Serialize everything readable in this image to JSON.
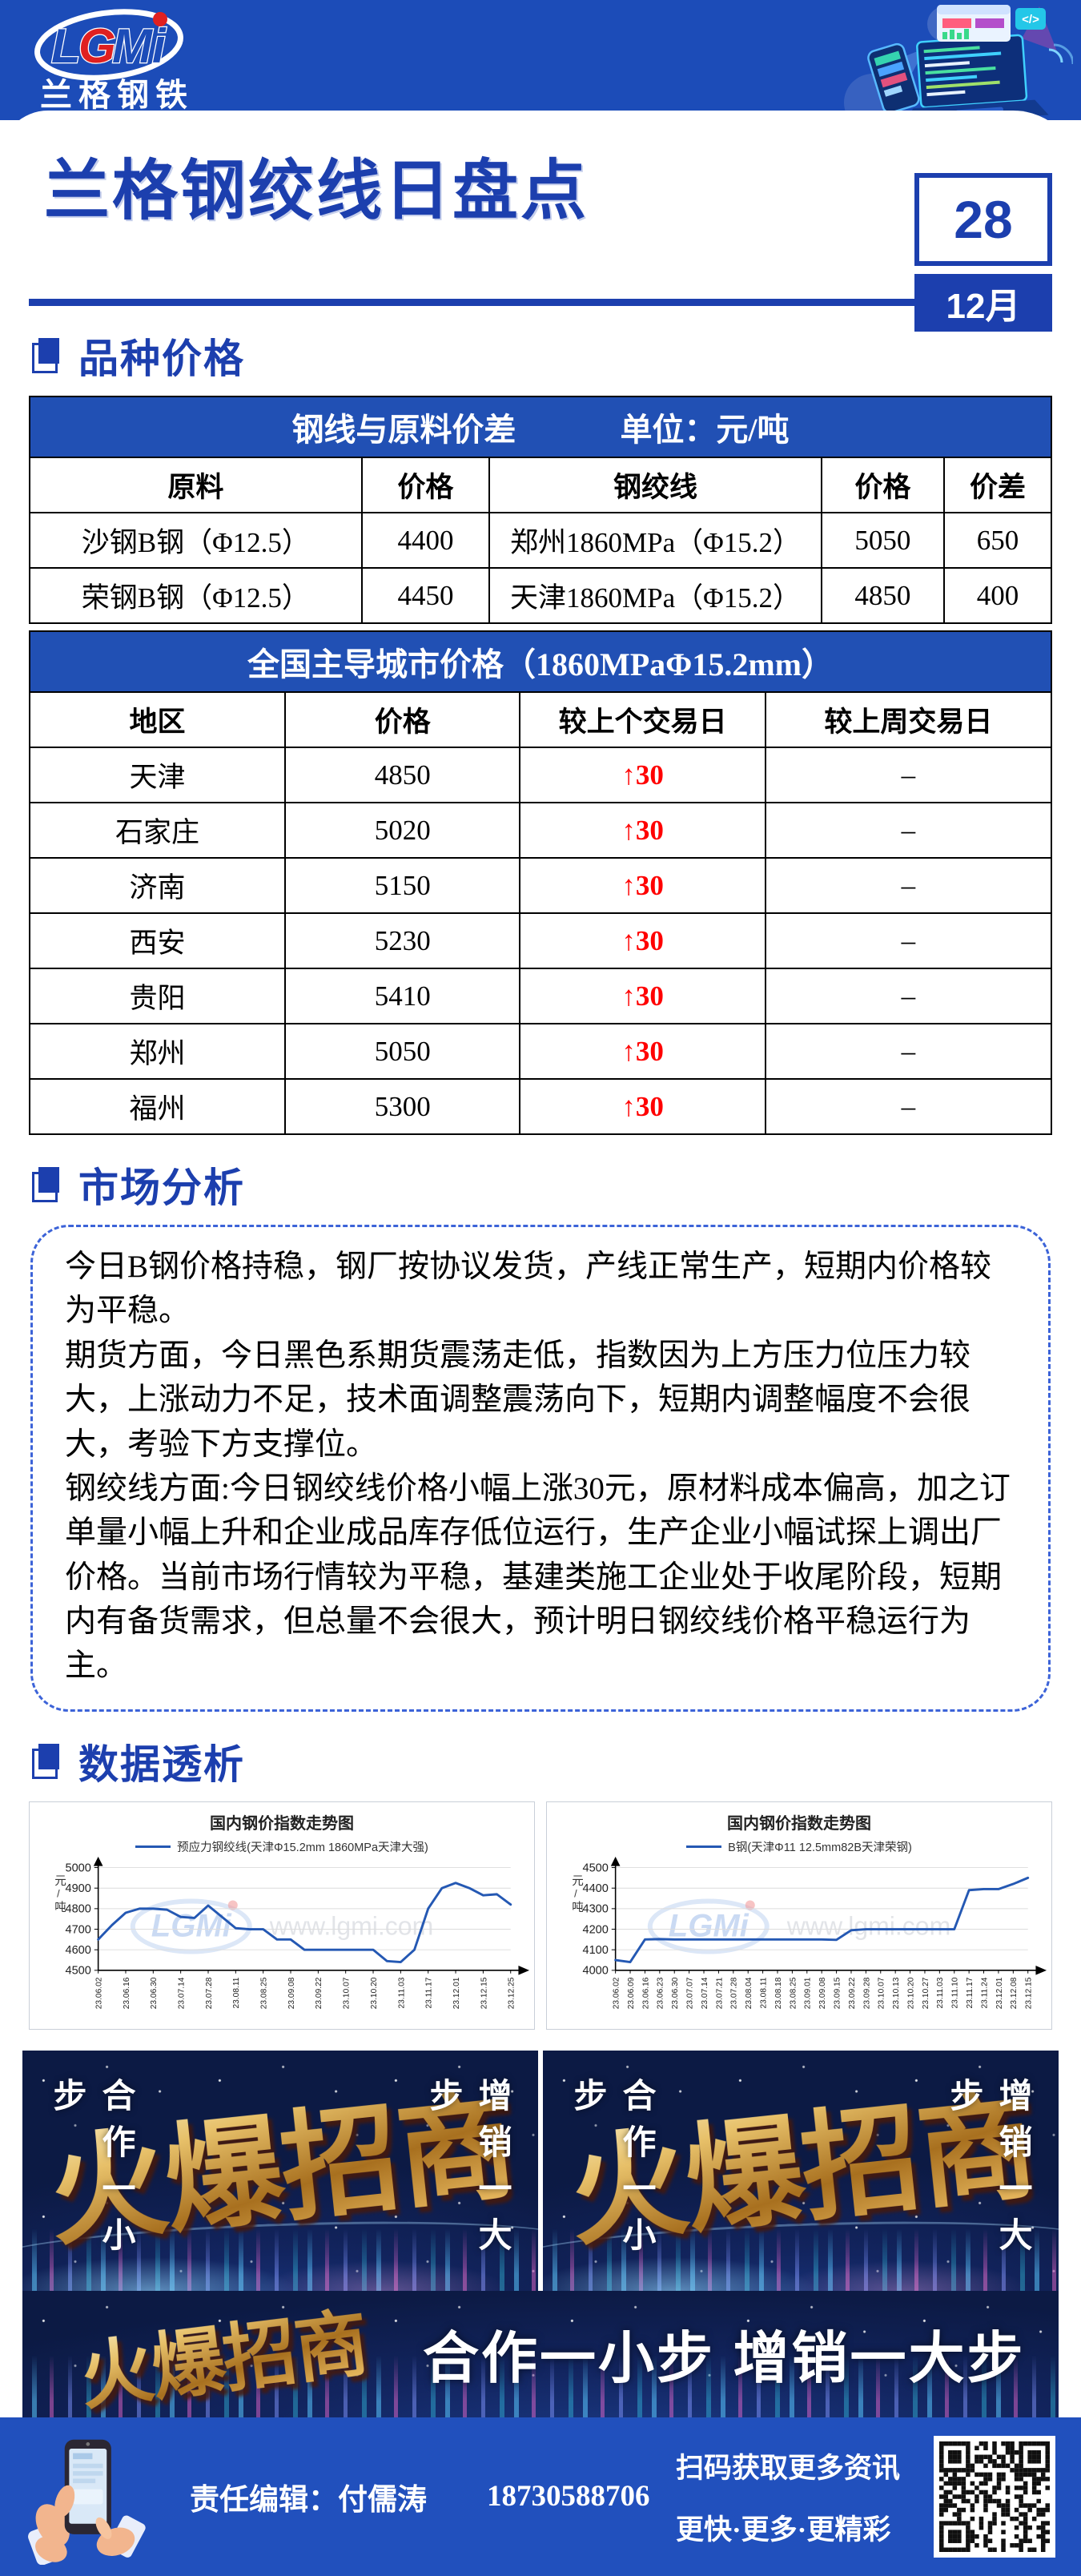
{
  "colors": {
    "primary_blue": "#1c4cb8",
    "title_blue": "#1c3fae",
    "table_header_blue": "#2150b4",
    "up_red": "#ff0000",
    "banner_navy": "#0c1a44",
    "gold": "#d9a84e",
    "chart_line_blue": "#2458b3"
  },
  "brand": {
    "logo_l": "L",
    "logo_g": "G",
    "logo_mi": "Mi",
    "name": "兰格钢铁"
  },
  "header": {
    "title": "兰格钢绞线日盘点",
    "day": "28",
    "month": "12月"
  },
  "section_titles": {
    "prices": "品种价格",
    "analysis": "市场分析",
    "data": "数据透析"
  },
  "spread_table": {
    "title": "钢线与原料价差",
    "unit": "单位：元/吨",
    "columns": [
      "原料",
      "价格",
      "钢绞线",
      "价格",
      "价差"
    ],
    "rows": [
      [
        "沙钢B钢（Φ12.5）",
        "4400",
        "郑州1860MPa（Φ15.2）",
        "5050",
        "650"
      ],
      [
        "荣钢B钢（Φ12.5）",
        "4450",
        "天津1860MPa（Φ15.2）",
        "4850",
        "400"
      ]
    ]
  },
  "city_table": {
    "title": "全国主导城市价格（1860MPaΦ15.2mm）",
    "columns": [
      "地区",
      "价格",
      "较上个交易日",
      "较上周交易日"
    ],
    "rows": [
      [
        "天津",
        "4850",
        "↑30",
        "–"
      ],
      [
        "石家庄",
        "5020",
        "↑30",
        "–"
      ],
      [
        "济南",
        "5150",
        "↑30",
        "–"
      ],
      [
        "西安",
        "5230",
        "↑30",
        "–"
      ],
      [
        "贵阳",
        "5410",
        "↑30",
        "–"
      ],
      [
        "郑州",
        "5050",
        "↑30",
        "–"
      ],
      [
        "福州",
        "5300",
        "↑30",
        "–"
      ]
    ]
  },
  "analysis": {
    "paragraphs": [
      "今日B钢价格持稳，钢厂按协议发货，产线正常生产，短期内价格较为平稳。",
      "期货方面，今日黑色系期货震荡走低，指数因为上方压力位压力较大，上涨动力不足，技术面调整震荡向下，短期内调整幅度不会很大，考验下方支撑位。",
      "钢绞线方面:今日钢绞线价格小幅上涨30元，原材料成本偏高，加之订单量小幅上升和企业成品库存低位运行，生产企业小幅试探上调出厂价格。当前市场行情较为平稳，基建类施工企业处于收尾阶段，短期内有备货需求，但总量不会很大，预计明日钢绞线价格平稳运行为主。"
    ]
  },
  "chart_data": [
    {
      "type": "line",
      "title": "国内钢价指数走势图",
      "legend": "预应力钢绞线(天津Φ15.2mm 1860MPa天津大强)",
      "ylabel": "元/吨",
      "ylim": [
        4500,
        5000
      ],
      "yticks": [
        4500,
        4600,
        4700,
        4800,
        4900,
        5000
      ],
      "x_ticks": [
        "23.06.02",
        "23.06.16",
        "23.06.30",
        "23.07.14",
        "23.07.28",
        "23.08.11",
        "23.08.25",
        "23.09.08",
        "23.09.22",
        "23.10.07",
        "23.10.20",
        "23.11.03",
        "23.11.17",
        "23.12.01",
        "23.12.15",
        "23.12.25"
      ],
      "tick_every": 2,
      "values": [
        4650,
        4720,
        4780,
        4800,
        4800,
        4795,
        4760,
        4755,
        4815,
        4760,
        4705,
        4700,
        4700,
        4650,
        4650,
        4600,
        4600,
        4600,
        4600,
        4600,
        4600,
        4545,
        4540,
        4600,
        4800,
        4900,
        4925,
        4900,
        4865,
        4870,
        4820
      ],
      "line_color": "#2458b3",
      "grid": true,
      "legend_position": "top",
      "watermark_logo": "LGMi",
      "watermark_url": "www.lgmi.com"
    },
    {
      "type": "line",
      "title": "国内钢价指数走势图",
      "legend": "B钢(天津Φ11 12.5mm82B天津荣钢)",
      "ylabel": "元/吨",
      "ylim": [
        4000,
        4500
      ],
      "yticks": [
        4000,
        4100,
        4200,
        4300,
        4400,
        4500
      ],
      "x_ticks": [
        "23.06.02",
        "23.06.09",
        "23.06.16",
        "23.06.23",
        "23.06.30",
        "23.07.07",
        "23.07.14",
        "23.07.21",
        "23.07.28",
        "23.08.04",
        "23.08.11",
        "23.08.18",
        "23.08.25",
        "23.09.01",
        "23.09.08",
        "23.09.15",
        "23.09.22",
        "23.09.28",
        "23.10.07",
        "23.10.13",
        "23.10.20",
        "23.10.27",
        "23.11.03",
        "23.11.10",
        "23.11.17",
        "23.11.24",
        "23.12.01",
        "23.12.08",
        "23.12.15"
      ],
      "tick_every": 1,
      "values": [
        4050,
        4040,
        4150,
        4152,
        4150,
        4150,
        4150,
        4150,
        4150,
        4150,
        4150,
        4150,
        4150,
        4150,
        4150,
        4148,
        4195,
        4200,
        4200,
        4200,
        4200,
        4200,
        4200,
        4200,
        4390,
        4395,
        4395,
        4420,
        4450
      ],
      "line_color": "#2458b3",
      "grid": true,
      "legend_position": "top",
      "watermark_logo": "LGMi",
      "watermark_url": "www.lgmi.com"
    }
  ],
  "banner": {
    "headline": "火爆招商",
    "left_vertical": "合作一小步",
    "right_vertical": "增销一大步",
    "bottom_headline": "火爆招商",
    "bottom_text": "合作一小步 增销一大步"
  },
  "footer": {
    "editor": "责任编辑：付儒涛",
    "phone": "18730588706",
    "scan_line1": "扫码获取更多资讯",
    "scan_line2": "更快·更多·更精彩"
  }
}
